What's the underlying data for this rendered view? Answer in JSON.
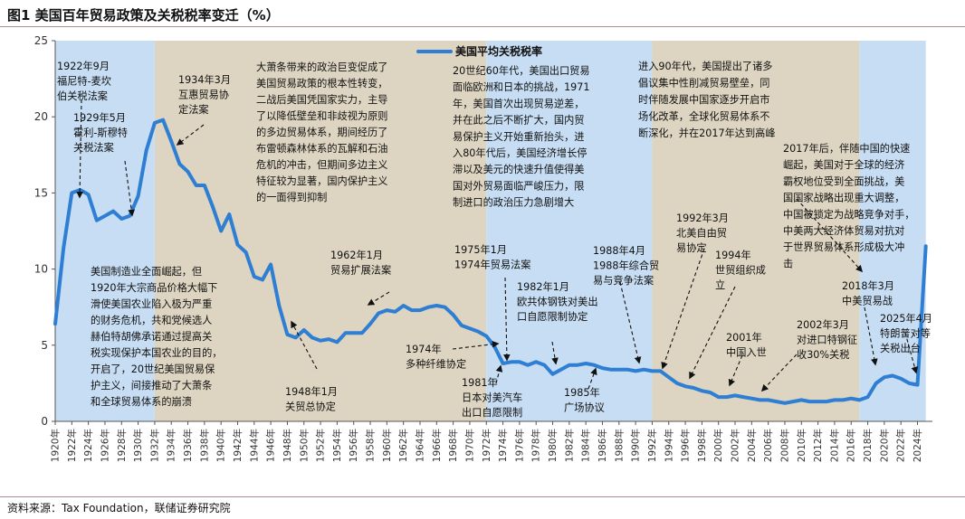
{
  "figure": {
    "title": "图1  美国百年贸易政策及关税税率变迁（%）",
    "source": "资料来源：Tax Foundation，联储证券研究院"
  },
  "chart_data": {
    "type": "line",
    "title": "",
    "xlabel": "",
    "ylabel": "",
    "xlim": [
      1920,
      2025
    ],
    "ylim": [
      0,
      25
    ],
    "yticks": [
      0,
      5,
      10,
      15,
      20,
      25
    ],
    "xticks": [
      "1920年",
      "1922年",
      "1924年",
      "1926年",
      "1928年",
      "1930年",
      "1932年",
      "1934年",
      "1936年",
      "1938年",
      "1940年",
      "1942年",
      "1944年",
      "1946年",
      "1948年",
      "1950年",
      "1952年",
      "1954年",
      "1956年",
      "1958年",
      "1960年",
      "1962年",
      "1964年",
      "1966年",
      "1968年",
      "1970年",
      "1972年",
      "1974年",
      "1976年",
      "1978年",
      "1980年",
      "1982年",
      "1984年",
      "1986年",
      "1988年",
      "1990年",
      "1992年",
      "1994年",
      "1996年",
      "1998年",
      "2000年",
      "2002年",
      "2004年",
      "2006年",
      "2008年",
      "2010年",
      "2012年",
      "2014年",
      "2016年",
      "2018年",
      "2020年",
      "2022年",
      "2024年"
    ],
    "grid": false,
    "legend_position": "top-center",
    "line_color": "#2e7ed3",
    "series": [
      {
        "name": "美国平均关税税率",
        "x": [
          1920,
          1921,
          1922,
          1923,
          1924,
          1925,
          1926,
          1927,
          1928,
          1929,
          1930,
          1931,
          1932,
          1933,
          1934,
          1935,
          1936,
          1937,
          1938,
          1939,
          1940,
          1941,
          1942,
          1943,
          1944,
          1945,
          1946,
          1947,
          1948,
          1949,
          1950,
          1951,
          1952,
          1953,
          1954,
          1955,
          1956,
          1957,
          1958,
          1959,
          1960,
          1961,
          1962,
          1963,
          1964,
          1965,
          1966,
          1967,
          1968,
          1969,
          1970,
          1971,
          1972,
          1973,
          1974,
          1975,
          1976,
          1977,
          1978,
          1979,
          1980,
          1981,
          1982,
          1983,
          1984,
          1985,
          1986,
          1987,
          1988,
          1989,
          1990,
          1991,
          1992,
          1993,
          1994,
          1995,
          1996,
          1997,
          1998,
          1999,
          2000,
          2001,
          2002,
          2003,
          2004,
          2005,
          2006,
          2007,
          2008,
          2009,
          2010,
          2011,
          2012,
          2013,
          2014,
          2015,
          2016,
          2017,
          2018,
          2019,
          2020,
          2021,
          2022,
          2023,
          2024,
          2025
        ],
        "values": [
          6.4,
          11.4,
          15,
          15.2,
          14.9,
          13.2,
          13.5,
          13.8,
          13.3,
          13.5,
          14.8,
          17.8,
          19.6,
          19.8,
          18.4,
          16.9,
          16.4,
          15.5,
          15.5,
          14.1,
          12.5,
          13.6,
          11.6,
          11.1,
          9.5,
          9.3,
          10.3,
          7.6,
          5.7,
          5.5,
          6,
          5.5,
          5.3,
          5.4,
          5.2,
          5.8,
          5.8,
          5.8,
          6.4,
          7.1,
          7.3,
          7.2,
          7.6,
          7.3,
          7.3,
          7.5,
          7.6,
          7.5,
          7,
          6.3,
          6.1,
          5.9,
          5.6,
          4.9,
          3.8,
          3.9,
          3.9,
          3.7,
          3.9,
          3.7,
          3.1,
          3.4,
          3.7,
          3.7,
          3.8,
          3.7,
          3.5,
          3.4,
          3.4,
          3.4,
          3.3,
          3.4,
          3.3,
          3.3,
          2.9,
          2.5,
          2.3,
          2.2,
          2,
          1.9,
          1.6,
          1.6,
          1.7,
          1.6,
          1.5,
          1.4,
          1.4,
          1.3,
          1.2,
          1.3,
          1.4,
          1.3,
          1.3,
          1.3,
          1.4,
          1.4,
          1.5,
          1.4,
          1.6,
          2.5,
          2.9,
          3,
          2.8,
          2.5,
          2.4,
          11.5
        ]
      }
    ],
    "shaded_periods": [
      {
        "from": 1920,
        "to": 1932,
        "color": "#c6ddf3"
      },
      {
        "from": 1932,
        "to": 1972,
        "color": "#ddd5c1"
      },
      {
        "from": 1972,
        "to": 1992,
        "color": "#c6ddf3"
      },
      {
        "from": 1992,
        "to": 2017,
        "color": "#ddd5c1"
      },
      {
        "from": 2017,
        "to": 2025,
        "color": "#c6ddf3"
      }
    ],
    "annotations": [
      {
        "id": "a1922",
        "lines": [
          "1922年9月",
          "福尼特-麦坎",
          "伯关税法案"
        ]
      },
      {
        "id": "a1929",
        "lines": [
          "1929年5月",
          "霍利-斯穆特",
          "关税法案"
        ]
      },
      {
        "id": "a1934",
        "lines": [
          "1934年3月",
          "互惠贸易协",
          "定法案"
        ]
      },
      {
        "id": "a1920s",
        "lines": [
          "美国制造业全面崛起，但",
          "1920年大宗商品价格大幅下",
          "滑使美国农业陷入极为严重",
          "的财务危机，共和党候选人",
          "赫伯特胡佛承诺通过提高关",
          "税实现保护本国农业的目的，",
          "开启了，20世纪美国贸易保",
          "护主义，间接推动了大萧条",
          "和全球贸易体系的崩溃"
        ]
      },
      {
        "id": "a_depression",
        "lines": [
          "大萧条带来的政治巨变促成了",
          "美国贸易政策的根本性转变，",
          "二战后美国凭国家实力，主导",
          "了以降低壁垒和非歧视为原则",
          "的多边贸易体系，期间经历了",
          "布雷顿森林体系的瓦解和石油",
          "危机的冲击，但期间多边主义",
          "特征较为显著，国内保护主义",
          "的一面得到抑制"
        ]
      },
      {
        "id": "a1948",
        "lines": [
          "1948年1月",
          "关贸总协定"
        ]
      },
      {
        "id": "a1962",
        "lines": [
          "1962年1月",
          "贸易扩展法案"
        ]
      },
      {
        "id": "a1960s",
        "lines": [
          "20世纪60年代，美国出口贸易",
          "面临欧洲和日本的挑战，1971",
          "年，美国首次出现贸易逆差，",
          "并在此之后不断扩大，国内贸",
          "易保护主义开始重新抬头，进",
          "入80年代后，美国经济增长停",
          "滞以及美元的快速升值使得美",
          "国对外贸易面临严峻压力，限",
          "制进口的政治压力急剧增大"
        ]
      },
      {
        "id": "a1975",
        "lines": [
          "1975年1月",
          "1974年贸易法案"
        ]
      },
      {
        "id": "a1974",
        "lines": [
          "1974年",
          "多种纤维协定"
        ]
      },
      {
        "id": "a1982",
        "lines": [
          "1982年1月",
          "欧共体钢铁对美出",
          "口自愿限制协定"
        ]
      },
      {
        "id": "a1981",
        "lines": [
          "1981年",
          "日本对美汽车",
          "出口自愿限制"
        ]
      },
      {
        "id": "a1985",
        "lines": [
          "1985年",
          "广场协议"
        ]
      },
      {
        "id": "a1988",
        "lines": [
          "1988年4月",
          "1988年综合贸",
          "易与竞争法案"
        ]
      },
      {
        "id": "a1990s",
        "lines": [
          "进入90年代，美国提出了诸多",
          "倡议集中性削减贸易壁垒，同",
          "时伴随发展中国家逐步开启市",
          "场化改革，全球化贸易体系不",
          "断深化，并在2017年达到高峰"
        ]
      },
      {
        "id": "a1992",
        "lines": [
          "1992年3月",
          "北美自由贸",
          "易协定"
        ]
      },
      {
        "id": "a1994",
        "lines": [
          "1994年",
          "世贸组织成",
          "立"
        ]
      },
      {
        "id": "a2001",
        "lines": [
          "2001年",
          "中国入世"
        ]
      },
      {
        "id": "a2002",
        "lines": [
          "2002年3月",
          "对进口特钢征",
          "收30%关税"
        ]
      },
      {
        "id": "a2017",
        "lines": [
          "2017年后，伴随中国的快速",
          "崛起，美国对于全球的经济",
          "霸权地位受到全面挑战，美",
          "国国家战略出现重大调整，",
          "中国被锁定为战略竞争对手，",
          "中美两大经济体贸易对抗对",
          "于世界贸易体系形成极大冲",
          "击"
        ]
      },
      {
        "id": "a2018",
        "lines": [
          "2018年3月",
          "中美贸易战"
        ]
      },
      {
        "id": "a2025",
        "lines": [
          "2025年4月",
          "特朗普对等",
          "关税出台"
        ]
      }
    ]
  }
}
